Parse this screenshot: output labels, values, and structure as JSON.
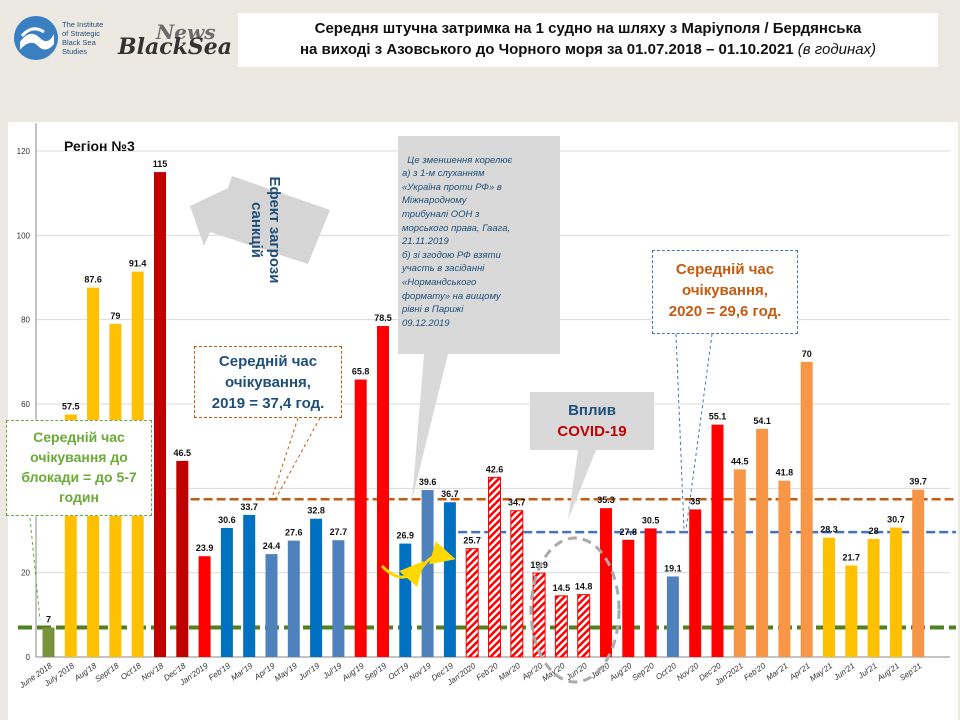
{
  "header": {
    "institute": "The Institute\nof Strategic\nBlack Sea\nStudies",
    "news_top": "News",
    "news_bottom": "BlackSea",
    "title_line1": "Середня штучна затримка на 1 судно на шляху з Маріуполя / Бердянська",
    "title_line2": "на виході з Азовського до Чорного моря за 01.07.2018 – 01.10.2021",
    "title_unit": "(в годинах)"
  },
  "chart_data": {
    "type": "bar",
    "title": "Середня штучна затримка на 1 судно на шляху з Маріуполя / Бердянська на виході з Азовського до Чорного моря за 01.07.2018 – 01.10.2021 (в годинах)",
    "region_label": "Регіон №3",
    "ylim": [
      0,
      120
    ],
    "yticks": [
      0,
      20,
      40,
      60,
      80,
      100,
      120
    ],
    "grid": true,
    "categories": [
      "June 2018",
      "July 2018",
      "Aug'18",
      "Sept'18",
      "Oct'18",
      "Nov'18",
      "Dec'18",
      "Jan'2019",
      "Feb'19",
      "Mar'19",
      "Apr'19",
      "May'19",
      "Jun'19",
      "Jul'19",
      "Aug'19",
      "Sep'19",
      "Oct'19",
      "Nov'19",
      "Dec'19",
      "Jan'2020",
      "Feb'20",
      "Mar'20",
      "Apr'20",
      "May'20",
      "Jun'20",
      "Jul'20",
      "Aug'20",
      "Sep'20",
      "Oct'20",
      "Nov'20",
      "Dec'20",
      "Jan'2021",
      "Feb'20",
      "Mar'21",
      "Apr'21",
      "May'21",
      "Jun'21",
      "Jul'21",
      "Aug'21",
      "Sep'21"
    ],
    "values": [
      7,
      57.5,
      87.6,
      79,
      91.4,
      115,
      46.5,
      23.9,
      30.6,
      33.7,
      24.4,
      27.6,
      32.8,
      27.7,
      65.8,
      78.5,
      26.9,
      39.6,
      36.7,
      25.7,
      42.6,
      34.7,
      19.9,
      14.5,
      14.8,
      35.3,
      27.8,
      30.5,
      19.1,
      35,
      55.1,
      44.5,
      54.1,
      41.8,
      70,
      28.3,
      21.7,
      28,
      30.7,
      39.7
    ],
    "value_labels": [
      "7",
      "57.5",
      "87.6",
      "79",
      "91.4",
      "115",
      "46.5",
      "23.9",
      "30.6",
      "33.7",
      "24.4",
      "27.6",
      "32.8",
      "27.7",
      "65.8",
      "78.5",
      "26.9",
      "39.6",
      "36.7",
      "25.7",
      "42.6",
      "34.7",
      "19.9",
      "14.5",
      "14.8",
      "35.3",
      "27.8",
      "30.5",
      "19.1",
      "35",
      "55.1",
      "44.5",
      "54.1",
      "41.8",
      "70",
      "28.3",
      "21.7",
      "28",
      "30.7",
      "39.7"
    ],
    "bar_colors": [
      "#77933c",
      "#ffc000",
      "#ffc000",
      "#ffc000",
      "#ffc000",
      "#c00000",
      "#c00000",
      "#ff0000",
      "#0070c0",
      "#0070c0",
      "#4f81bd",
      "#4f81bd",
      "#0070c0",
      "#4f81bd",
      "#ff0000",
      "#ff0000",
      "#0070c0",
      "#4f81bd",
      "#0070c0",
      "#ff0000",
      "#ff0000",
      "#ff0000",
      "#ff0000",
      "#ff0000",
      "#ff0000",
      "#ff0000",
      "#ff0000",
      "#ff0000",
      "#4f81bd",
      "#ff0000",
      "#ff0000",
      "#f79646",
      "#f79646",
      "#f79646",
      "#f79646",
      "#ffc000",
      "#ffc000",
      "#ffc000",
      "#ffc000",
      "#f79646"
    ],
    "hatched_bars": [
      19,
      20,
      21,
      22,
      23,
      24
    ],
    "reference_lines": [
      {
        "name": "blockade-level",
        "value": 7,
        "color": "#4f7f1e",
        "from_index": 0,
        "to_index": 39
      },
      {
        "name": "avg-2019",
        "value": 37.4,
        "color": "#c55a11",
        "from_index": 7,
        "to_index": 39
      },
      {
        "name": "avg-2020",
        "value": 29.6,
        "color": "#4472c4",
        "from_index": 19,
        "to_index": 39
      }
    ],
    "annotations": {
      "blockade": "Середній час очікування до блокади = до 5-7 годин",
      "avg2019_line1": "Середній час",
      "avg2019_line2": "очікування,",
      "avg2019_line3": "2019 = 37,4 год.",
      "avg2020_line1": "Середній час",
      "avg2020_line2": "очікування,",
      "avg2020_line3": "2020 = 29,6 год.",
      "sanctions_line1": "Ефект загрози",
      "sanctions_line2": "санкцій",
      "covid_line1": "Вплив",
      "covid_line2": "COVID-19",
      "correlation_note": "Це зменшення корелює\nа) з 1-м слуханням\n«Україна проти РФ» в\nМіжнародному\nтрибуналі ООН з\nморського права, Гаага,\n21.11.2019\nб) зі згодою РФ взяти\nучасть в засіданні\n«Нормандського\nформату» на вищому\nрівні в Парижі\n09.12.2019"
    }
  }
}
